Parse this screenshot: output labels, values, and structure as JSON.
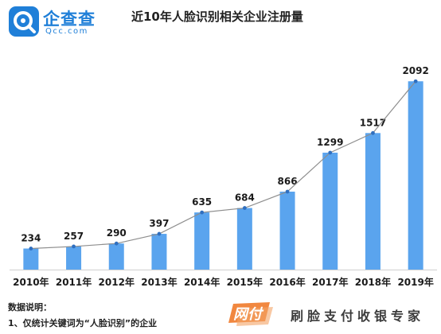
{
  "header": {
    "brand_name": "企查查",
    "brand_domain": "Qcc.com",
    "logo_icon": "qcc-logo-icon",
    "brand_color": "#1f7fd8"
  },
  "chart_data": {
    "type": "bar",
    "title": "近10年人脸识别相关企业注册量",
    "categories": [
      "2010年",
      "2011年",
      "2012年",
      "2013年",
      "2014年",
      "2015年",
      "2016年",
      "2017年",
      "2018年",
      "2019年"
    ],
    "values": [
      234,
      257,
      290,
      397,
      635,
      684,
      866,
      1299,
      1517,
      2092
    ],
    "overlay_line": true,
    "xlabel": "",
    "ylabel": "",
    "ylim": [
      0,
      2200
    ],
    "grid": false,
    "legend": "none",
    "bar_color": "#5aa4ee",
    "line_color": "#8e8e8e",
    "marker_color": "#2f6fc0"
  },
  "notes": {
    "title": "数据说明：",
    "line1": "1、仅统计关键词为“人脸识别”的企业"
  },
  "watermark": {
    "badge_text": "网付",
    "caption": "刷脸支付收银专家",
    "badge_color": "#f07a2a"
  }
}
